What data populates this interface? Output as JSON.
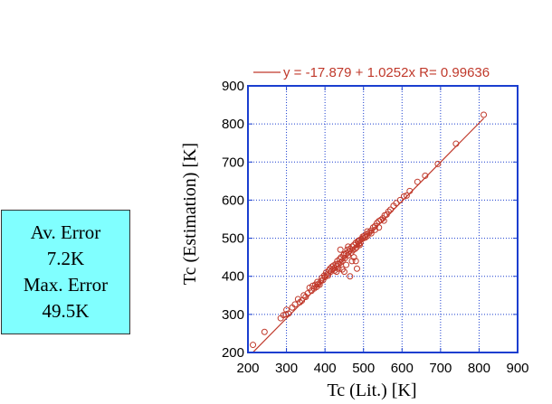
{
  "summary_box": {
    "lines": [
      "Av. Error",
      "7.2K",
      "Max. Error",
      "49.5K"
    ],
    "background": "#80ffff"
  },
  "colors": {
    "series": "#c0392b",
    "frame": "#1a3ecf",
    "grid": "#1a3ecf"
  },
  "chart_data": {
    "type": "scatter",
    "xlabel": "Tc  (Lit.) [K]",
    "ylabel": "Tc (Estimation) [K]",
    "xlim": [
      200,
      900
    ],
    "ylim": [
      200,
      900
    ],
    "xticks": [
      200,
      300,
      400,
      500,
      600,
      700,
      800,
      900
    ],
    "yticks": [
      200,
      300,
      400,
      500,
      600,
      700,
      800,
      900
    ],
    "grid": true,
    "legend_position": "top",
    "fit_line": {
      "label": "y = -17.879 + 1.0252x R= 0.99636",
      "intercept": -17.879,
      "slope": 1.0252,
      "x_range": [
        213,
        812
      ]
    },
    "series": [
      {
        "points": [
          [
            213,
            220
          ],
          [
            243,
            254
          ],
          [
            285,
            290
          ],
          [
            292,
            298
          ],
          [
            298,
            300
          ],
          [
            300,
            312
          ],
          [
            305,
            302
          ],
          [
            315,
            318
          ],
          [
            322,
            326
          ],
          [
            330,
            340
          ],
          [
            335,
            332
          ],
          [
            340,
            336
          ],
          [
            345,
            350
          ],
          [
            350,
            346
          ],
          [
            355,
            355
          ],
          [
            360,
            370
          ],
          [
            365,
            362
          ],
          [
            368,
            375
          ],
          [
            372,
            368
          ],
          [
            375,
            378
          ],
          [
            378,
            372
          ],
          [
            380,
            385
          ],
          [
            383,
            380
          ],
          [
            386,
            378
          ],
          [
            390,
            388
          ],
          [
            392,
            396
          ],
          [
            395,
            390
          ],
          [
            398,
            402
          ],
          [
            400,
            398
          ],
          [
            403,
            410
          ],
          [
            405,
            405
          ],
          [
            408,
            402
          ],
          [
            410,
            415
          ],
          [
            413,
            420
          ],
          [
            415,
            412
          ],
          [
            418,
            425
          ],
          [
            420,
            418
          ],
          [
            422,
            428
          ],
          [
            425,
            422
          ],
          [
            428,
            432
          ],
          [
            430,
            426
          ],
          [
            432,
            440
          ],
          [
            435,
            432
          ],
          [
            438,
            445
          ],
          [
            440,
            436
          ],
          [
            442,
            450
          ],
          [
            445,
            440
          ],
          [
            448,
            455
          ],
          [
            450,
            458
          ],
          [
            452,
            448
          ],
          [
            455,
            460
          ],
          [
            458,
            470
          ],
          [
            460,
            455
          ],
          [
            462,
            465
          ],
          [
            465,
            472
          ],
          [
            468,
            462
          ],
          [
            470,
            478
          ],
          [
            472,
            468
          ],
          [
            475,
            482
          ],
          [
            478,
            472
          ],
          [
            480,
            488
          ],
          [
            482,
            476
          ],
          [
            485,
            492
          ],
          [
            488,
            485
          ],
          [
            490,
            495
          ],
          [
            492,
            488
          ],
          [
            495,
            498
          ],
          [
            498,
            504
          ],
          [
            500,
            500
          ],
          [
            502,
            506
          ],
          [
            505,
            502
          ],
          [
            508,
            510
          ],
          [
            510,
            506
          ],
          [
            515,
            515
          ],
          [
            520,
            520
          ],
          [
            525,
            528
          ],
          [
            530,
            532
          ],
          [
            535,
            540
          ],
          [
            540,
            545
          ],
          [
            545,
            548
          ],
          [
            550,
            552
          ],
          [
            555,
            560
          ],
          [
            560,
            562
          ],
          [
            565,
            570
          ],
          [
            570,
            575
          ],
          [
            578,
            585
          ],
          [
            585,
            592
          ],
          [
            595,
            600
          ],
          [
            605,
            610
          ],
          [
            612,
            612
          ],
          [
            620,
            624
          ],
          [
            640,
            648
          ],
          [
            660,
            664
          ],
          [
            693,
            695
          ],
          [
            740,
            748
          ],
          [
            812,
            824
          ],
          [
            430,
            412
          ],
          [
            440,
            470
          ],
          [
            455,
            430
          ],
          [
            465,
            400
          ],
          [
            480,
            440
          ],
          [
            450,
            412
          ],
          [
            475,
            450
          ],
          [
            425,
            415
          ],
          [
            445,
            418
          ],
          [
            490,
            482
          ],
          [
            470,
            440
          ],
          [
            460,
            478
          ],
          [
            435,
            420
          ],
          [
            483,
            420
          ],
          [
            487,
            492
          ],
          [
            520,
            513
          ],
          [
            530,
            522
          ],
          [
            553,
            546
          ],
          [
            510,
            518
          ],
          [
            540,
            528
          ]
        ]
      }
    ]
  }
}
